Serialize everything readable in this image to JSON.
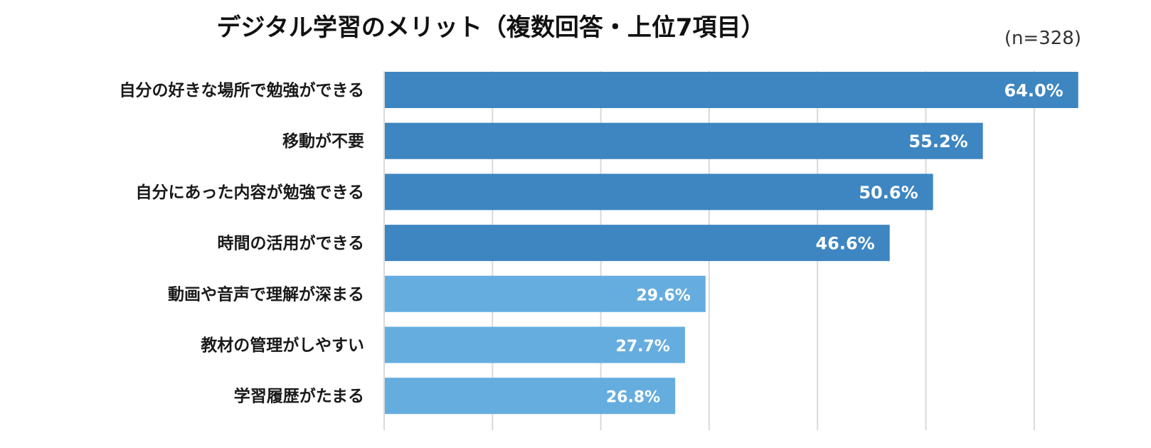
{
  "chart_data": {
    "type": "bar",
    "orientation": "horizontal",
    "title": "デジタル学習のメリット（複数回答・上位7項目）",
    "note": "(n=328)",
    "categories": [
      "自分の好きな場所で勉強ができる",
      "移動が不要",
      "自分にあった内容が勉強できる",
      "時間の活用ができる",
      "動画や音声で理解が深まる",
      "教材の管理がしやすい",
      "学習履歴がたまる"
    ],
    "values": [
      64.0,
      55.2,
      50.6,
      46.6,
      29.6,
      27.7,
      26.8
    ],
    "data_labels": [
      "64.0%",
      "55.2%",
      "50.6%",
      "46.6%",
      "29.6%",
      "27.7%",
      "26.8%"
    ],
    "value_unit": "%",
    "xlim": [
      0,
      70
    ],
    "gridlines": [
      0,
      10,
      20,
      30,
      40,
      50,
      60
    ],
    "grid": true,
    "x_tick_labels_shown": false,
    "legend": "none",
    "colors": {
      "top4": "#3d86c1",
      "others": "#65addf",
      "grid": "#d9d9d9"
    },
    "bar_colors": [
      "#3d86c1",
      "#3d86c1",
      "#3d86c1",
      "#3d86c1",
      "#65addf",
      "#65addf",
      "#65addf"
    ]
  }
}
